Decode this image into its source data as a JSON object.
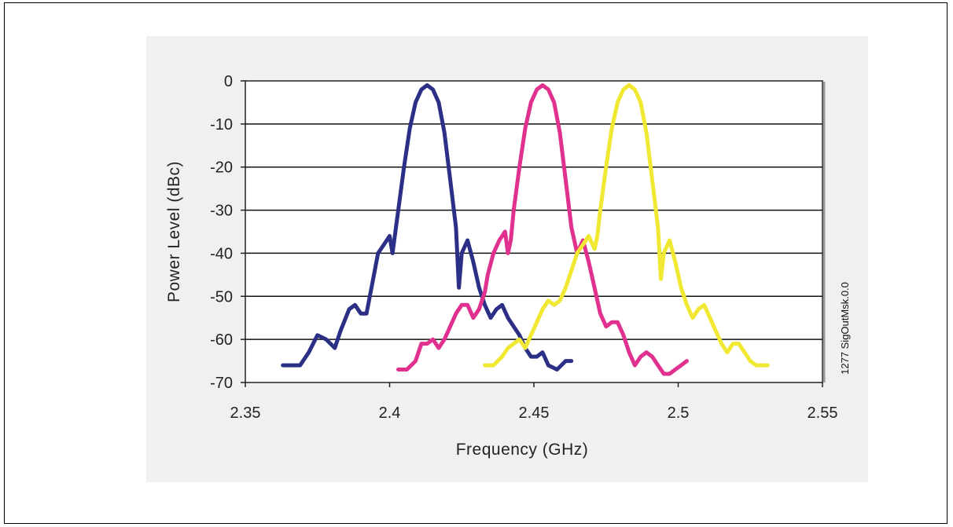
{
  "figure_id": "1277 SigOutMsk.0.0",
  "chart_data": {
    "type": "line",
    "title": "",
    "xlabel": "Frequency (GHz)",
    "ylabel": "Power Level (dBc)",
    "xlim": [
      2.35,
      2.55
    ],
    "ylim": [
      -70,
      0
    ],
    "x_ticks": [
      2.35,
      2.4,
      2.45,
      2.5,
      2.55
    ],
    "x_tick_labels": [
      "2.35",
      "2.4",
      "2.45",
      "2.5",
      "2.55"
    ],
    "y_ticks": [
      0,
      -10,
      -20,
      -30,
      -40,
      -50,
      -60,
      -70
    ],
    "y_tick_labels": [
      "0",
      "-10",
      "-20",
      "-30",
      "-40",
      "-50",
      "-60",
      "-70"
    ],
    "grid": "horizontal",
    "legend": "none",
    "series": [
      {
        "color": "#2b2f86",
        "points": [
          [
            2.363,
            -66
          ],
          [
            2.366,
            -66
          ],
          [
            2.369,
            -66
          ],
          [
            2.372,
            -63
          ],
          [
            2.375,
            -59
          ],
          [
            2.378,
            -60
          ],
          [
            2.381,
            -62
          ],
          [
            2.383,
            -58
          ],
          [
            2.386,
            -53
          ],
          [
            2.388,
            -52
          ],
          [
            2.39,
            -54
          ],
          [
            2.392,
            -54
          ],
          [
            2.394,
            -47
          ],
          [
            2.396,
            -40
          ],
          [
            2.398,
            -38
          ],
          [
            2.4,
            -36
          ],
          [
            2.401,
            -40
          ],
          [
            2.403,
            -30
          ],
          [
            2.405,
            -20
          ],
          [
            2.407,
            -11
          ],
          [
            2.409,
            -5
          ],
          [
            2.411,
            -2
          ],
          [
            2.413,
            -1
          ],
          [
            2.415,
            -2
          ],
          [
            2.417,
            -5
          ],
          [
            2.419,
            -12
          ],
          [
            2.421,
            -23
          ],
          [
            2.423,
            -34
          ],
          [
            2.424,
            -48
          ],
          [
            2.425,
            -40
          ],
          [
            2.427,
            -37
          ],
          [
            2.429,
            -42
          ],
          [
            2.431,
            -48
          ],
          [
            2.433,
            -52
          ],
          [
            2.435,
            -55
          ],
          [
            2.437,
            -53
          ],
          [
            2.439,
            -52
          ],
          [
            2.441,
            -55
          ],
          [
            2.443,
            -57
          ],
          [
            2.445,
            -59
          ],
          [
            2.447,
            -62
          ],
          [
            2.449,
            -64
          ],
          [
            2.451,
            -64
          ],
          [
            2.453,
            -63
          ],
          [
            2.455,
            -66
          ],
          [
            2.458,
            -67
          ],
          [
            2.461,
            -65
          ],
          [
            2.463,
            -65
          ]
        ]
      },
      {
        "color": "#e0318f",
        "points": [
          [
            2.403,
            -67
          ],
          [
            2.406,
            -67
          ],
          [
            2.409,
            -65
          ],
          [
            2.411,
            -61
          ],
          [
            2.413,
            -61
          ],
          [
            2.415,
            -60
          ],
          [
            2.417,
            -62
          ],
          [
            2.419,
            -60
          ],
          [
            2.421,
            -57
          ],
          [
            2.423,
            -54
          ],
          [
            2.425,
            -52
          ],
          [
            2.427,
            -52
          ],
          [
            2.429,
            -55
          ],
          [
            2.431,
            -53
          ],
          [
            2.433,
            -49
          ],
          [
            2.434,
            -45
          ],
          [
            2.436,
            -40
          ],
          [
            2.438,
            -37
          ],
          [
            2.44,
            -35
          ],
          [
            2.441,
            -40
          ],
          [
            2.442,
            -37
          ],
          [
            2.443,
            -30
          ],
          [
            2.445,
            -20
          ],
          [
            2.447,
            -11
          ],
          [
            2.449,
            -5
          ],
          [
            2.451,
            -2
          ],
          [
            2.453,
            -1
          ],
          [
            2.455,
            -2
          ],
          [
            2.457,
            -5
          ],
          [
            2.459,
            -12
          ],
          [
            2.461,
            -23
          ],
          [
            2.463,
            -34
          ],
          [
            2.465,
            -40
          ],
          [
            2.467,
            -37
          ],
          [
            2.469,
            -42
          ],
          [
            2.471,
            -48
          ],
          [
            2.473,
            -54
          ],
          [
            2.475,
            -57
          ],
          [
            2.477,
            -56
          ],
          [
            2.479,
            -56
          ],
          [
            2.481,
            -59
          ],
          [
            2.483,
            -63
          ],
          [
            2.485,
            -66
          ],
          [
            2.487,
            -64
          ],
          [
            2.489,
            -63
          ],
          [
            2.491,
            -64
          ],
          [
            2.493,
            -66
          ],
          [
            2.495,
            -68
          ],
          [
            2.497,
            -68
          ],
          [
            2.499,
            -67
          ],
          [
            2.501,
            -66
          ],
          [
            2.503,
            -65
          ]
        ]
      },
      {
        "color": "#f0e832",
        "points": [
          [
            2.433,
            -66
          ],
          [
            2.436,
            -66
          ],
          [
            2.439,
            -64
          ],
          [
            2.441,
            -62
          ],
          [
            2.443,
            -61
          ],
          [
            2.445,
            -60
          ],
          [
            2.447,
            -62
          ],
          [
            2.449,
            -59
          ],
          [
            2.451,
            -56
          ],
          [
            2.453,
            -53
          ],
          [
            2.455,
            -51
          ],
          [
            2.457,
            -52
          ],
          [
            2.459,
            -51
          ],
          [
            2.461,
            -48
          ],
          [
            2.463,
            -44
          ],
          [
            2.465,
            -40
          ],
          [
            2.467,
            -38
          ],
          [
            2.469,
            -36
          ],
          [
            2.471,
            -39
          ],
          [
            2.472,
            -36
          ],
          [
            2.473,
            -30
          ],
          [
            2.475,
            -20
          ],
          [
            2.477,
            -11
          ],
          [
            2.479,
            -5
          ],
          [
            2.481,
            -2
          ],
          [
            2.483,
            -1
          ],
          [
            2.485,
            -2
          ],
          [
            2.487,
            -5
          ],
          [
            2.489,
            -12
          ],
          [
            2.491,
            -23
          ],
          [
            2.493,
            -34
          ],
          [
            2.494,
            -46
          ],
          [
            2.495,
            -40
          ],
          [
            2.497,
            -37
          ],
          [
            2.499,
            -42
          ],
          [
            2.501,
            -48
          ],
          [
            2.503,
            -52
          ],
          [
            2.505,
            -55
          ],
          [
            2.507,
            -53
          ],
          [
            2.509,
            -52
          ],
          [
            2.511,
            -55
          ],
          [
            2.513,
            -58
          ],
          [
            2.515,
            -61
          ],
          [
            2.517,
            -63
          ],
          [
            2.519,
            -61
          ],
          [
            2.521,
            -61
          ],
          [
            2.523,
            -63
          ],
          [
            2.525,
            -65
          ],
          [
            2.527,
            -66
          ],
          [
            2.529,
            -66
          ],
          [
            2.531,
            -66
          ]
        ]
      }
    ]
  }
}
